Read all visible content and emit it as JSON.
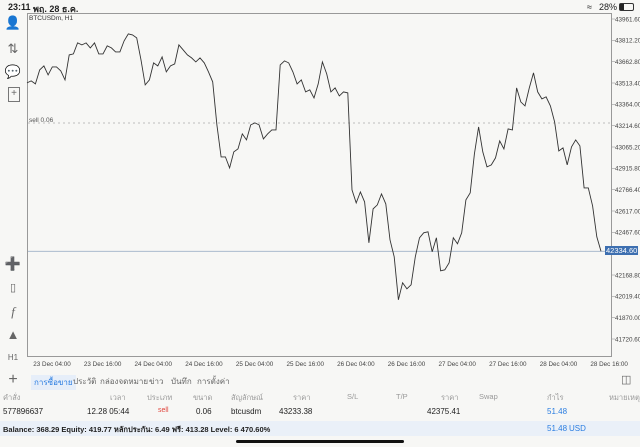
{
  "status_bar": {
    "time": "23:11",
    "date": "พฤ. 28 ธ.ค.",
    "battery": "28%",
    "battery_level": 0.28
  },
  "chart": {
    "symbol_label": "BTCUSDm, H1",
    "sell_label": "sell 0.06",
    "current_price_label": "42334.60"
  },
  "chart_data": {
    "type": "line",
    "title": "BTCUSDm, H1",
    "ylim": [
      41720.6,
      43961.6
    ],
    "y_ticks": [
      "43961.60",
      "43812.20",
      "43662.80",
      "43513.40",
      "43364.00",
      "43214.60",
      "43065.20",
      "42915.80",
      "42766.40",
      "42617.00",
      "42467.60",
      "42168.80",
      "42019.40",
      "41870.00",
      "41720.60"
    ],
    "x_ticks": [
      "23 Dec 04:00",
      "23 Dec 16:00",
      "24 Dec 04:00",
      "24 Dec 16:00",
      "25 Dec 04:00",
      "25 Dec 16:00",
      "26 Dec 04:00",
      "26 Dec 16:00",
      "27 Dec 04:00",
      "27 Dec 16:00",
      "28 Dec 04:00",
      "28 Dec 16:00"
    ],
    "interval": "H1",
    "grid": false,
    "sell_level": 43233.38,
    "current_price": 42334.6,
    "values": [
      43514,
      43528,
      43507,
      43605,
      43633,
      43570,
      43626,
      43626,
      43598,
      43535,
      43710,
      43717,
      43794,
      43780,
      43794,
      43759,
      43794,
      43717,
      43717,
      43773,
      43759,
      43731,
      43731,
      43808,
      43857,
      43850,
      43829,
      43675,
      43500,
      43535,
      43654,
      43633,
      43696,
      43591,
      43633,
      43647,
      43780,
      43745,
      43710,
      43689,
      43661,
      43689,
      43654,
      43591,
      43521,
      43220,
      42996,
      42996,
      42919,
      43031,
      43052,
      43157,
      43115,
      43220,
      43234,
      43220,
      43122,
      43157,
      43185,
      43185,
      43640,
      43668,
      43654,
      43591,
      43507,
      43535,
      43451,
      43465,
      43409,
      43507,
      43661,
      43577,
      43451,
      43479,
      43423,
      43451,
      43444,
      42765,
      42674,
      42751,
      42681,
      42394,
      42632,
      42660,
      42737,
      42667,
      42415,
      42296,
      41995,
      42114,
      42072,
      42100,
      42296,
      42429,
      42464,
      42471,
      42331,
      42429,
      42198,
      42205,
      42254,
      42429,
      42387,
      42464,
      42695,
      42744,
      43017,
      43206,
      43031,
      42926,
      42940,
      42989,
      43108,
      43052,
      43192,
      43185,
      43479,
      43381,
      43353,
      43479,
      43584,
      43451,
      43402,
      43416,
      43353,
      43241,
      43038,
      43059,
      42940,
      43066,
      43115,
      43073,
      42779,
      42779,
      42653,
      42436,
      42334.6
    ]
  },
  "toolbar": {
    "icons": [
      "account-icon",
      "trade-arrows-icon",
      "chat-icon",
      "new-order-icon",
      "crosshair-icon",
      "candlestick-icon",
      "function-icon",
      "objects-icon",
      "timeframe-icon",
      "add-icon"
    ],
    "timeframe": "H1"
  },
  "tabs": [
    "การซื้อขาย",
    "ประวัติ",
    "กล่องจดหมาย",
    "ข่าว",
    "บันทึก",
    "การตั้งค่า"
  ],
  "table": {
    "headers": [
      "คำสั่ง",
      "เวลา",
      "ประเภท",
      "ขนาด",
      "สัญลักษณ์",
      "ราคา",
      "S/L",
      "T/P",
      "ราคา",
      "Swap",
      "กำไร",
      "หมายเหตุ"
    ],
    "rows": [
      {
        "order": "577896637",
        "time": "12.28 05:44",
        "type": "sell",
        "volume": "0.06",
        "symbol": "btcusdm",
        "open_price": "43233.38",
        "sl": "",
        "tp": "",
        "price": "42375.41",
        "swap": "",
        "profit": "51.48",
        "comment": ""
      }
    ]
  },
  "balance": {
    "summary": "Balance: 368.29 Equity: 419.77 หลักประกัน: 6.49 ฟรี: 413.28 Level: 6 470.60%",
    "total_profit": "51.48",
    "currency": "USD"
  },
  "colors": {
    "accent": "#2a7de1",
    "sell": "#e0443c",
    "line": "#333333",
    "current_price_bg": "#3d6fb0"
  }
}
